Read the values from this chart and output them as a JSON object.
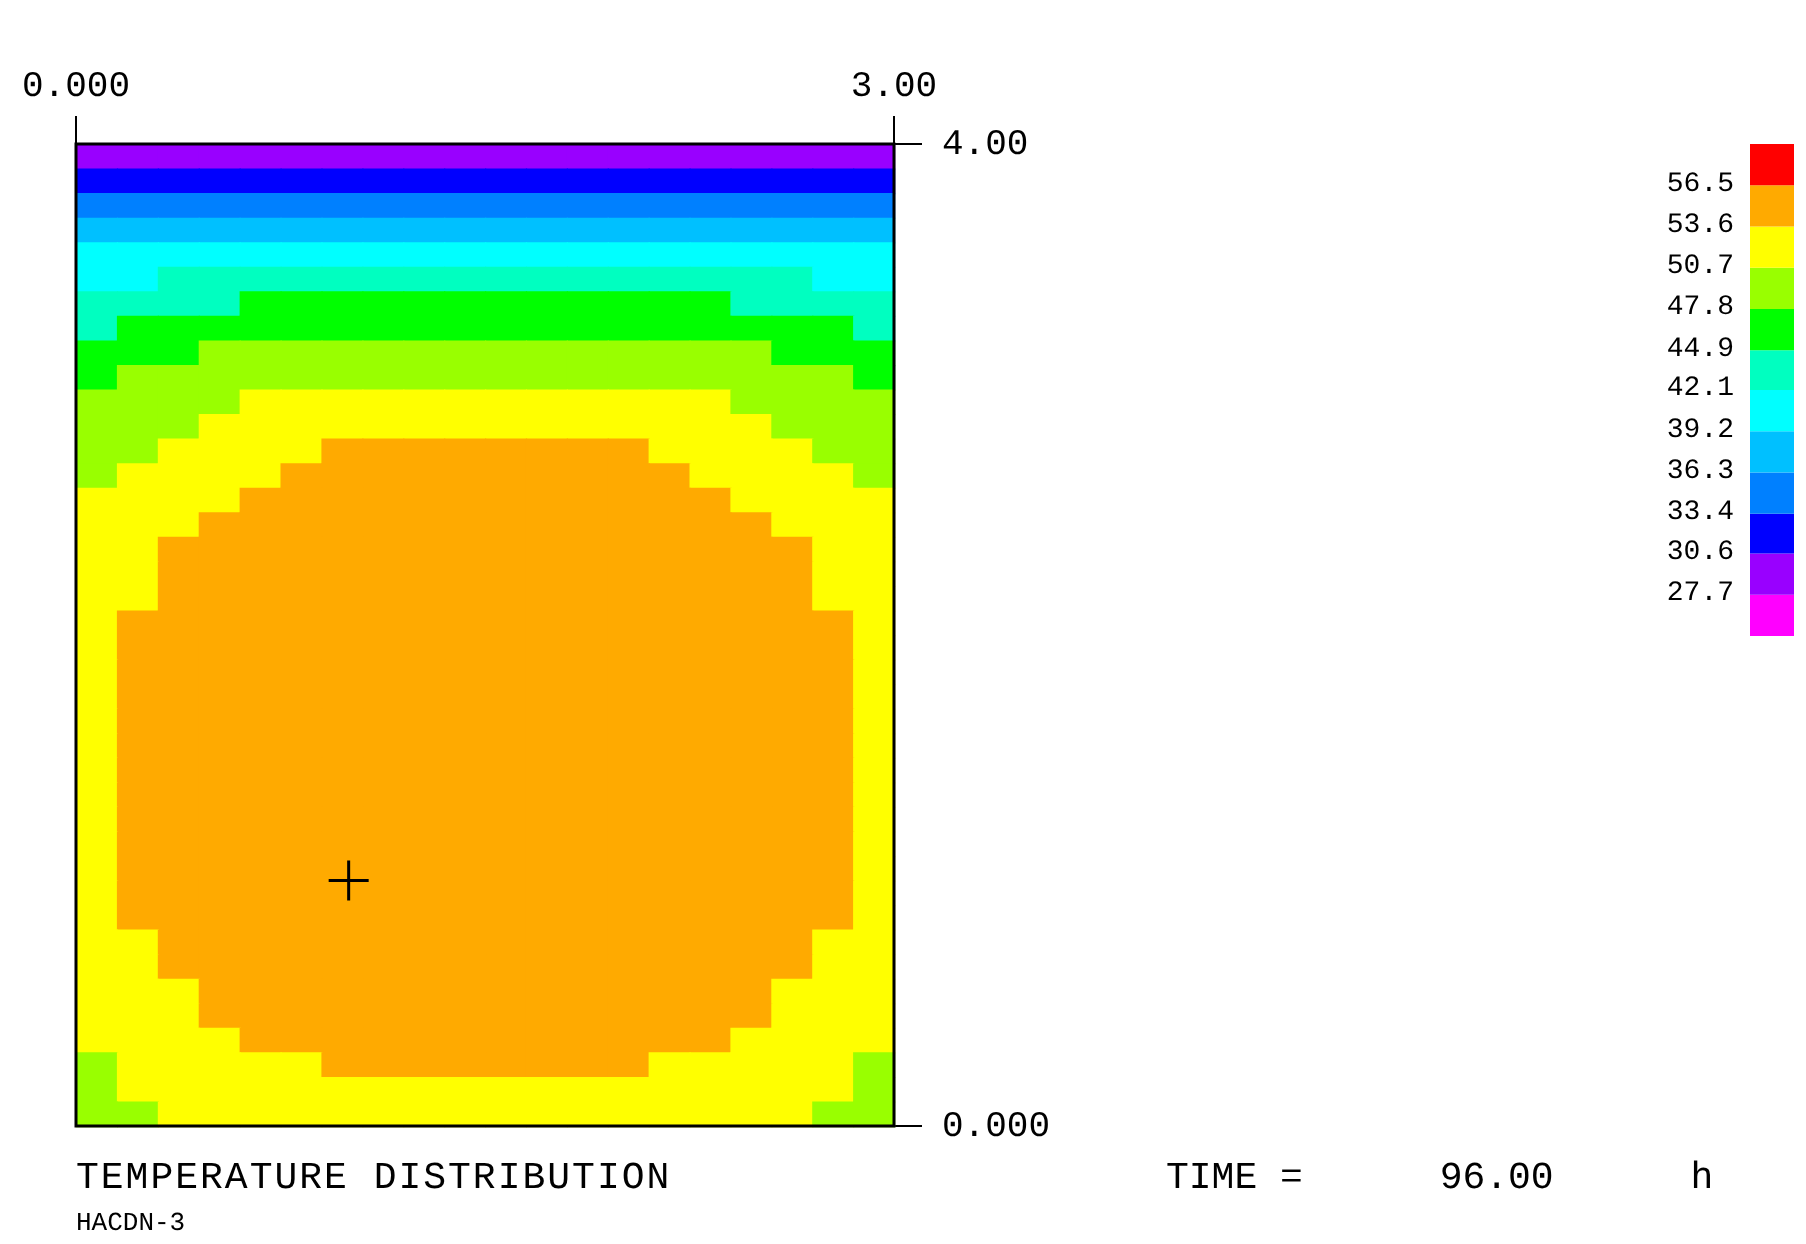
{
  "chart_data": {
    "type": "heatmap",
    "title": "TEMPERATURE DISTRIBUTION",
    "annotations": [
      "TIME =      96.00      h",
      "HACDN-3"
    ],
    "xlim": [
      0,
      3
    ],
    "xticks": [
      {
        "value": 0,
        "label": "0.000"
      },
      {
        "value": 3,
        "label": "3.00"
      }
    ],
    "ylim": [
      0,
      4
    ],
    "yticks": [
      {
        "value": 4,
        "label": "4.00"
      },
      {
        "value": 0,
        "label": "0.000"
      }
    ],
    "clim": [
      24.8,
      59.4
    ],
    "cticks": [
      27.7,
      30.6,
      33.4,
      36.3,
      39.2,
      42.1,
      44.9,
      47.8,
      50.7,
      53.6,
      56.5
    ],
    "cells": [
      [
        29.2,
        29.2,
        29.2,
        29.2,
        29.2,
        29.2,
        29.2,
        29.2,
        29.2,
        29.2,
        29.2,
        29.2,
        29.2,
        29.2,
        29.2,
        29.2,
        29.2,
        29.2,
        29.2,
        29.2
      ],
      [
        32.0,
        32.0,
        32.0,
        32.0,
        32.0,
        32.0,
        32.0,
        32.0,
        32.0,
        32.0,
        32.0,
        32.0,
        32.0,
        32.0,
        32.0,
        32.0,
        32.0,
        32.0,
        32.0,
        32.0
      ],
      [
        34.9,
        34.9,
        34.9,
        34.9,
        34.9,
        34.9,
        34.9,
        34.9,
        34.9,
        34.9,
        34.9,
        34.9,
        34.9,
        34.9,
        34.9,
        34.9,
        34.9,
        34.9,
        34.9,
        34.9
      ],
      [
        37.8,
        37.8,
        37.8,
        37.8,
        37.8,
        37.8,
        37.8,
        37.8,
        37.8,
        37.8,
        37.8,
        37.8,
        37.8,
        37.8,
        37.8,
        37.8,
        37.8,
        37.8,
        37.8,
        37.8
      ],
      [
        40.7,
        40.7,
        40.7,
        40.7,
        40.7,
        40.7,
        40.7,
        40.7,
        40.7,
        40.7,
        40.7,
        40.7,
        40.7,
        40.7,
        40.7,
        40.7,
        40.7,
        40.7,
        40.7,
        40.7
      ],
      [
        40.7,
        40.7,
        43.5,
        43.5,
        43.5,
        43.5,
        43.5,
        43.5,
        43.5,
        43.5,
        43.5,
        43.5,
        43.5,
        43.5,
        43.5,
        43.5,
        43.5,
        43.5,
        40.7,
        40.7
      ],
      [
        43.5,
        43.5,
        43.5,
        43.5,
        46.3,
        46.3,
        46.3,
        46.3,
        46.3,
        46.3,
        46.3,
        46.3,
        46.3,
        46.3,
        46.3,
        46.3,
        43.5,
        43.5,
        43.5,
        43.5
      ],
      [
        43.5,
        46.3,
        46.3,
        46.3,
        46.3,
        46.3,
        46.3,
        46.3,
        46.3,
        46.3,
        46.3,
        46.3,
        46.3,
        46.3,
        46.3,
        46.3,
        46.3,
        46.3,
        46.3,
        43.5
      ],
      [
        46.3,
        46.3,
        46.3,
        49.3,
        49.3,
        49.3,
        49.3,
        49.3,
        49.3,
        49.3,
        49.3,
        49.3,
        49.3,
        49.3,
        49.3,
        49.3,
        49.3,
        46.3,
        46.3,
        46.3
      ],
      [
        46.3,
        49.3,
        49.3,
        49.3,
        49.3,
        49.3,
        49.3,
        49.3,
        49.3,
        49.3,
        49.3,
        49.3,
        49.3,
        49.3,
        49.3,
        49.3,
        49.3,
        49.3,
        49.3,
        46.3
      ],
      [
        49.3,
        49.3,
        49.3,
        49.3,
        52.2,
        52.2,
        52.2,
        52.2,
        52.2,
        52.2,
        52.2,
        52.2,
        52.2,
        52.2,
        52.2,
        52.2,
        49.3,
        49.3,
        49.3,
        49.3
      ],
      [
        49.3,
        49.3,
        49.3,
        52.2,
        52.2,
        52.2,
        52.2,
        52.2,
        52.2,
        52.2,
        52.2,
        52.2,
        52.2,
        52.2,
        52.2,
        52.2,
        52.2,
        49.3,
        49.3,
        49.3
      ],
      [
        49.3,
        49.3,
        52.2,
        52.2,
        52.2,
        52.2,
        55.0,
        55.0,
        55.0,
        55.0,
        55.0,
        55.0,
        55.0,
        55.0,
        52.2,
        52.2,
        52.2,
        52.2,
        49.3,
        49.3
      ],
      [
        49.3,
        52.2,
        52.2,
        52.2,
        52.2,
        55.0,
        55.0,
        55.0,
        55.0,
        55.0,
        55.0,
        55.0,
        55.0,
        55.0,
        55.0,
        52.2,
        52.2,
        52.2,
        52.2,
        49.3
      ],
      [
        52.2,
        52.2,
        52.2,
        52.2,
        55.0,
        55.0,
        55.0,
        55.0,
        55.0,
        55.0,
        55.0,
        55.0,
        55.0,
        55.0,
        55.0,
        55.0,
        52.2,
        52.2,
        52.2,
        52.2
      ],
      [
        52.2,
        52.2,
        52.2,
        55.0,
        55.0,
        55.0,
        55.0,
        55.0,
        55.0,
        55.0,
        55.0,
        55.0,
        55.0,
        55.0,
        55.0,
        55.0,
        55.0,
        52.2,
        52.2,
        52.2
      ],
      [
        52.2,
        52.2,
        55.0,
        55.0,
        55.0,
        55.0,
        55.0,
        55.0,
        55.0,
        55.0,
        55.0,
        55.0,
        55.0,
        55.0,
        55.0,
        55.0,
        55.0,
        55.0,
        52.2,
        52.2
      ],
      [
        52.2,
        52.2,
        55.0,
        55.0,
        55.0,
        55.0,
        55.0,
        55.0,
        55.0,
        55.0,
        55.0,
        55.0,
        55.0,
        55.0,
        55.0,
        55.0,
        55.0,
        55.0,
        52.2,
        52.2
      ],
      [
        52.2,
        52.2,
        55.0,
        55.0,
        55.0,
        55.0,
        55.0,
        55.0,
        55.0,
        55.0,
        55.0,
        55.0,
        55.0,
        55.0,
        55.0,
        55.0,
        55.0,
        55.0,
        52.2,
        52.2
      ],
      [
        52.2,
        55.0,
        55.0,
        55.0,
        55.0,
        55.0,
        55.0,
        55.0,
        55.0,
        55.0,
        55.0,
        55.0,
        55.0,
        55.0,
        55.0,
        55.0,
        55.0,
        55.0,
        55.0,
        52.2
      ],
      [
        52.2,
        55.0,
        55.0,
        55.0,
        55.0,
        55.0,
        55.0,
        55.0,
        55.0,
        55.0,
        55.0,
        55.0,
        55.0,
        55.0,
        55.0,
        55.0,
        55.0,
        55.0,
        55.0,
        52.2
      ],
      [
        52.2,
        55.0,
        55.0,
        55.0,
        55.0,
        55.0,
        55.0,
        55.0,
        55.0,
        55.0,
        55.0,
        55.0,
        55.0,
        55.0,
        55.0,
        55.0,
        55.0,
        55.0,
        55.0,
        52.2
      ],
      [
        52.2,
        55.0,
        55.0,
        55.0,
        55.0,
        55.0,
        55.0,
        55.0,
        55.0,
        55.0,
        55.0,
        55.0,
        55.0,
        55.0,
        55.0,
        55.0,
        55.0,
        55.0,
        55.0,
        52.2
      ],
      [
        52.2,
        55.0,
        55.0,
        55.0,
        55.0,
        55.0,
        55.0,
        55.0,
        55.0,
        55.0,
        55.0,
        55.0,
        55.0,
        55.0,
        55.0,
        55.0,
        55.0,
        55.0,
        55.0,
        52.2
      ],
      [
        52.2,
        55.0,
        55.0,
        55.0,
        55.0,
        55.0,
        55.0,
        55.0,
        55.0,
        55.0,
        55.0,
        55.0,
        55.0,
        55.0,
        55.0,
        55.0,
        55.0,
        55.0,
        55.0,
        52.2
      ],
      [
        52.2,
        55.0,
        55.0,
        55.0,
        55.0,
        55.0,
        55.0,
        55.0,
        55.0,
        55.0,
        55.0,
        55.0,
        55.0,
        55.0,
        55.0,
        55.0,
        55.0,
        55.0,
        55.0,
        52.2
      ],
      [
        52.2,
        55.0,
        55.0,
        55.0,
        55.0,
        55.0,
        55.0,
        55.0,
        55.0,
        55.0,
        55.0,
        55.0,
        55.0,
        55.0,
        55.0,
        55.0,
        55.0,
        55.0,
        55.0,
        52.2
      ],
      [
        52.2,
        55.0,
        55.0,
        55.0,
        55.0,
        55.0,
        55.0,
        55.0,
        55.0,
        55.0,
        55.0,
        55.0,
        55.0,
        55.0,
        55.0,
        55.0,
        55.0,
        55.0,
        55.0,
        52.2
      ],
      [
        52.2,
        55.0,
        55.0,
        55.0,
        55.0,
        55.0,
        55.0,
        55.0,
        55.0,
        55.0,
        55.0,
        55.0,
        55.0,
        55.0,
        55.0,
        55.0,
        55.0,
        55.0,
        55.0,
        52.2
      ],
      [
        52.2,
        55.0,
        55.0,
        55.0,
        55.0,
        55.0,
        55.0,
        55.0,
        55.0,
        55.0,
        55.0,
        55.0,
        55.0,
        55.0,
        55.0,
        55.0,
        55.0,
        55.0,
        55.0,
        52.2
      ],
      [
        52.2,
        55.0,
        55.0,
        55.0,
        55.0,
        55.0,
        55.0,
        55.0,
        55.0,
        55.0,
        55.0,
        55.0,
        55.0,
        55.0,
        55.0,
        55.0,
        55.0,
        55.0,
        55.0,
        52.2
      ],
      [
        52.2,
        55.0,
        55.0,
        55.0,
        55.0,
        55.0,
        55.0,
        55.0,
        55.0,
        55.0,
        55.0,
        55.0,
        55.0,
        55.0,
        55.0,
        55.0,
        55.0,
        55.0,
        55.0,
        52.2
      ],
      [
        52.2,
        52.2,
        55.0,
        55.0,
        55.0,
        55.0,
        55.0,
        55.0,
        55.0,
        55.0,
        55.0,
        55.0,
        55.0,
        55.0,
        55.0,
        55.0,
        55.0,
        55.0,
        52.2,
        52.2
      ],
      [
        52.2,
        52.2,
        55.0,
        55.0,
        55.0,
        55.0,
        55.0,
        55.0,
        55.0,
        55.0,
        55.0,
        55.0,
        55.0,
        55.0,
        55.0,
        55.0,
        55.0,
        55.0,
        52.2,
        52.2
      ],
      [
        52.2,
        52.2,
        52.2,
        55.0,
        55.0,
        55.0,
        55.0,
        55.0,
        55.0,
        55.0,
        55.0,
        55.0,
        55.0,
        55.0,
        55.0,
        55.0,
        55.0,
        52.2,
        52.2,
        52.2
      ],
      [
        52.2,
        52.2,
        52.2,
        55.0,
        55.0,
        55.0,
        55.0,
        55.0,
        55.0,
        55.0,
        55.0,
        55.0,
        55.0,
        55.0,
        55.0,
        55.0,
        55.0,
        52.2,
        52.2,
        52.2
      ],
      [
        52.2,
        52.2,
        52.2,
        52.2,
        55.0,
        55.0,
        55.0,
        55.0,
        55.0,
        55.0,
        55.0,
        55.0,
        55.0,
        55.0,
        55.0,
        55.0,
        52.2,
        52.2,
        52.2,
        52.2
      ],
      [
        49.3,
        52.2,
        52.2,
        52.2,
        52.2,
        52.2,
        55.0,
        55.0,
        55.0,
        55.0,
        55.0,
        55.0,
        55.0,
        55.0,
        52.2,
        52.2,
        52.2,
        52.2,
        52.2,
        49.3
      ],
      [
        49.3,
        52.2,
        52.2,
        52.2,
        52.2,
        52.2,
        52.2,
        52.2,
        52.2,
        52.2,
        52.2,
        52.2,
        52.2,
        52.2,
        52.2,
        52.2,
        52.2,
        52.2,
        52.2,
        49.3
      ],
      [
        49.3,
        49.3,
        52.2,
        52.2,
        52.2,
        52.2,
        52.2,
        52.2,
        52.2,
        52.2,
        52.2,
        52.2,
        52.2,
        52.2,
        52.2,
        52.2,
        52.2,
        52.2,
        49.3,
        49.3
      ]
    ],
    "marker": "cross",
    "series": [
      {
        "type": "scatter",
        "x": [
          1.0
        ],
        "values": [
          1.0
        ],
        "color": "#000000"
      }
    ]
  }
}
